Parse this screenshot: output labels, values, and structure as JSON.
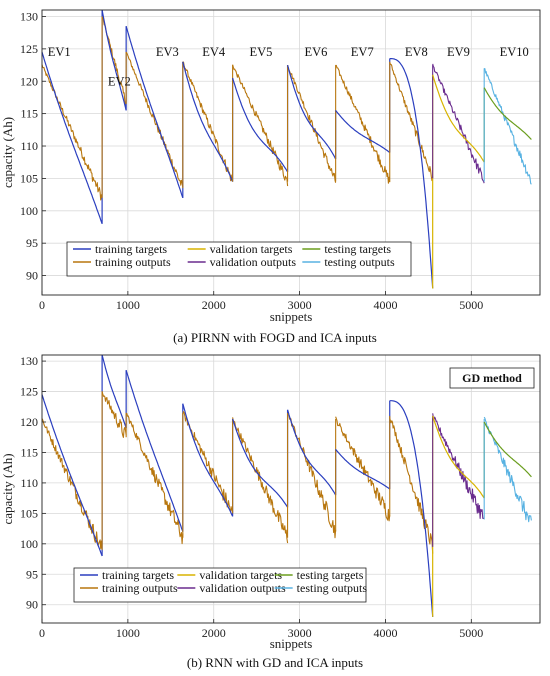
{
  "chart_data": [
    {
      "type": "line",
      "caption": "(a) PIRNN with FOGD and ICA inputs",
      "xlabel": "snippets",
      "ylabel": "capacity (Ah)",
      "xlim": [
        0,
        5800
      ],
      "ylim": [
        87,
        131
      ],
      "xticks": [
        "0",
        "1000",
        "2000",
        "3000",
        "4000",
        "5000"
      ],
      "yticks": [
        "90",
        "95",
        "100",
        "105",
        "110",
        "115",
        "120",
        "125",
        "130"
      ],
      "grid": true,
      "legend": {
        "position": "bottom-center",
        "entries": [
          {
            "name": "training targets",
            "color": "#2b3fbf"
          },
          {
            "name": "training outputs",
            "color": "#b8770f"
          },
          {
            "name": "validation targets",
            "color": "#d8b400"
          },
          {
            "name": "validation outputs",
            "color": "#6a2c8e"
          },
          {
            "name": "testing targets",
            "color": "#6b9e1f"
          },
          {
            "name": "testing outputs",
            "color": "#58b2e2"
          }
        ]
      },
      "annotations": [
        {
          "text": "EV1",
          "x": 200,
          "y": 124.5
        },
        {
          "text": "EV2",
          "x": 900,
          "y": 120
        },
        {
          "text": "EV3",
          "x": 1460,
          "y": 124.5
        },
        {
          "text": "EV4",
          "x": 2000,
          "y": 124.5
        },
        {
          "text": "EV5",
          "x": 2550,
          "y": 124.5
        },
        {
          "text": "EV6",
          "x": 3190,
          "y": 124.5
        },
        {
          "text": "EV7",
          "x": 3730,
          "y": 124.5
        },
        {
          "text": "EV8",
          "x": 4360,
          "y": 124.5
        },
        {
          "text": "EV9",
          "x": 4850,
          "y": 124.5
        },
        {
          "text": "EV10",
          "x": 5500,
          "y": 124.5
        }
      ],
      "method_label": "",
      "segments": [
        {
          "set": "training",
          "x0": 0,
          "x1": 700,
          "target": [
            124.5,
            98
          ],
          "output": [
            122.5,
            102
          ],
          "curv": 0.05
        },
        {
          "set": "training",
          "x0": 700,
          "x1": 980,
          "target": [
            131,
            115.5
          ],
          "output": [
            130,
            116.5
          ],
          "curv": 0.1
        },
        {
          "set": "training",
          "x0": 980,
          "x1": 1640,
          "target": [
            128.5,
            102
          ],
          "output": [
            124.5,
            103.5
          ],
          "curv": 0.05
        },
        {
          "set": "training",
          "x0": 1640,
          "x1": 2220,
          "target": [
            123,
            104.5
          ],
          "output": [
            123,
            104.5
          ],
          "curv": 0.2
        },
        {
          "set": "training",
          "x0": 2220,
          "x1": 2860,
          "target": [
            120.5,
            106
          ],
          "output": [
            122.5,
            104.5
          ],
          "curv": 0.3
        },
        {
          "set": "training",
          "x0": 2860,
          "x1": 3420,
          "target": [
            122.5,
            108
          ],
          "output": [
            122.5,
            104.5
          ],
          "curv": 0.3
        },
        {
          "set": "training",
          "x0": 3420,
          "x1": 4050,
          "target": [
            115.5,
            109
          ],
          "output": [
            122.5,
            104.5
          ],
          "curv": 0.2
        },
        {
          "set": "training",
          "x0": 4050,
          "x1": 4550,
          "target": [
            123.5,
            88
          ],
          "output": [
            123,
            105
          ],
          "curv": -0.8
        },
        {
          "set": "validation",
          "x0": 4550,
          "x1": 5150,
          "target": [
            121,
            107.5
          ],
          "output": [
            122.5,
            104.5
          ],
          "curv": 0.3
        },
        {
          "set": "testing",
          "x0": 5150,
          "x1": 5700,
          "target": [
            119,
            111
          ],
          "output": [
            122,
            104.5
          ],
          "curv": 0.2
        }
      ]
    },
    {
      "type": "line",
      "caption": "(b) RNN with GD and ICA inputs",
      "xlabel": "snippets",
      "ylabel": "capacity (Ah)",
      "xlim": [
        0,
        5800
      ],
      "ylim": [
        87,
        131
      ],
      "xticks": [
        "0",
        "1000",
        "2000",
        "3000",
        "4000",
        "5000"
      ],
      "yticks": [
        "90",
        "95",
        "100",
        "105",
        "110",
        "115",
        "120",
        "125",
        "130"
      ],
      "grid": true,
      "legend": {
        "position": "bottom-left",
        "entries": [
          {
            "name": "training targets",
            "color": "#2b3fbf"
          },
          {
            "name": "training outputs",
            "color": "#b8770f"
          },
          {
            "name": "validation targets",
            "color": "#d8b400"
          },
          {
            "name": "validation outputs",
            "color": "#6a2c8e"
          },
          {
            "name": "testing targets",
            "color": "#6b9e1f"
          },
          {
            "name": "testing outputs",
            "color": "#58b2e2"
          }
        ]
      },
      "annotations": [],
      "method_label": "GD method",
      "segments": [
        {
          "set": "training",
          "x0": 0,
          "x1": 700,
          "target": [
            124.5,
            98
          ],
          "output": [
            120.5,
            99
          ],
          "curv": 0.05
        },
        {
          "set": "training",
          "x0": 700,
          "x1": 980,
          "target": [
            131,
            119
          ],
          "output": [
            125,
            117.5
          ],
          "curv": 0.1
        },
        {
          "set": "training",
          "x0": 980,
          "x1": 1640,
          "target": [
            128.5,
            102
          ],
          "output": [
            121.5,
            101
          ],
          "curv": 0.05
        },
        {
          "set": "training",
          "x0": 1640,
          "x1": 2220,
          "target": [
            123,
            104.5
          ],
          "output": [
            121.5,
            105
          ],
          "curv": 0.2
        },
        {
          "set": "training",
          "x0": 2220,
          "x1": 2860,
          "target": [
            120.5,
            106
          ],
          "output": [
            120.5,
            101
          ],
          "curv": 0.3
        },
        {
          "set": "training",
          "x0": 2860,
          "x1": 3420,
          "target": [
            122,
            108
          ],
          "output": [
            121.5,
            102
          ],
          "curv": 0.3
        },
        {
          "set": "training",
          "x0": 3420,
          "x1": 4050,
          "target": [
            115.5,
            109
          ],
          "output": [
            120.5,
            104.5
          ],
          "curv": 0.2
        },
        {
          "set": "training",
          "x0": 4050,
          "x1": 4550,
          "target": [
            123.5,
            88
          ],
          "output": [
            121,
            99.5
          ],
          "curv": -0.8
        },
        {
          "set": "validation",
          "x0": 4550,
          "x1": 5150,
          "target": [
            121,
            107.5
          ],
          "output": [
            121,
            104
          ],
          "curv": 0.3
        },
        {
          "set": "testing",
          "x0": 5150,
          "x1": 5700,
          "target": [
            120,
            111
          ],
          "output": [
            120.5,
            103
          ],
          "curv": 0.2
        }
      ]
    }
  ]
}
